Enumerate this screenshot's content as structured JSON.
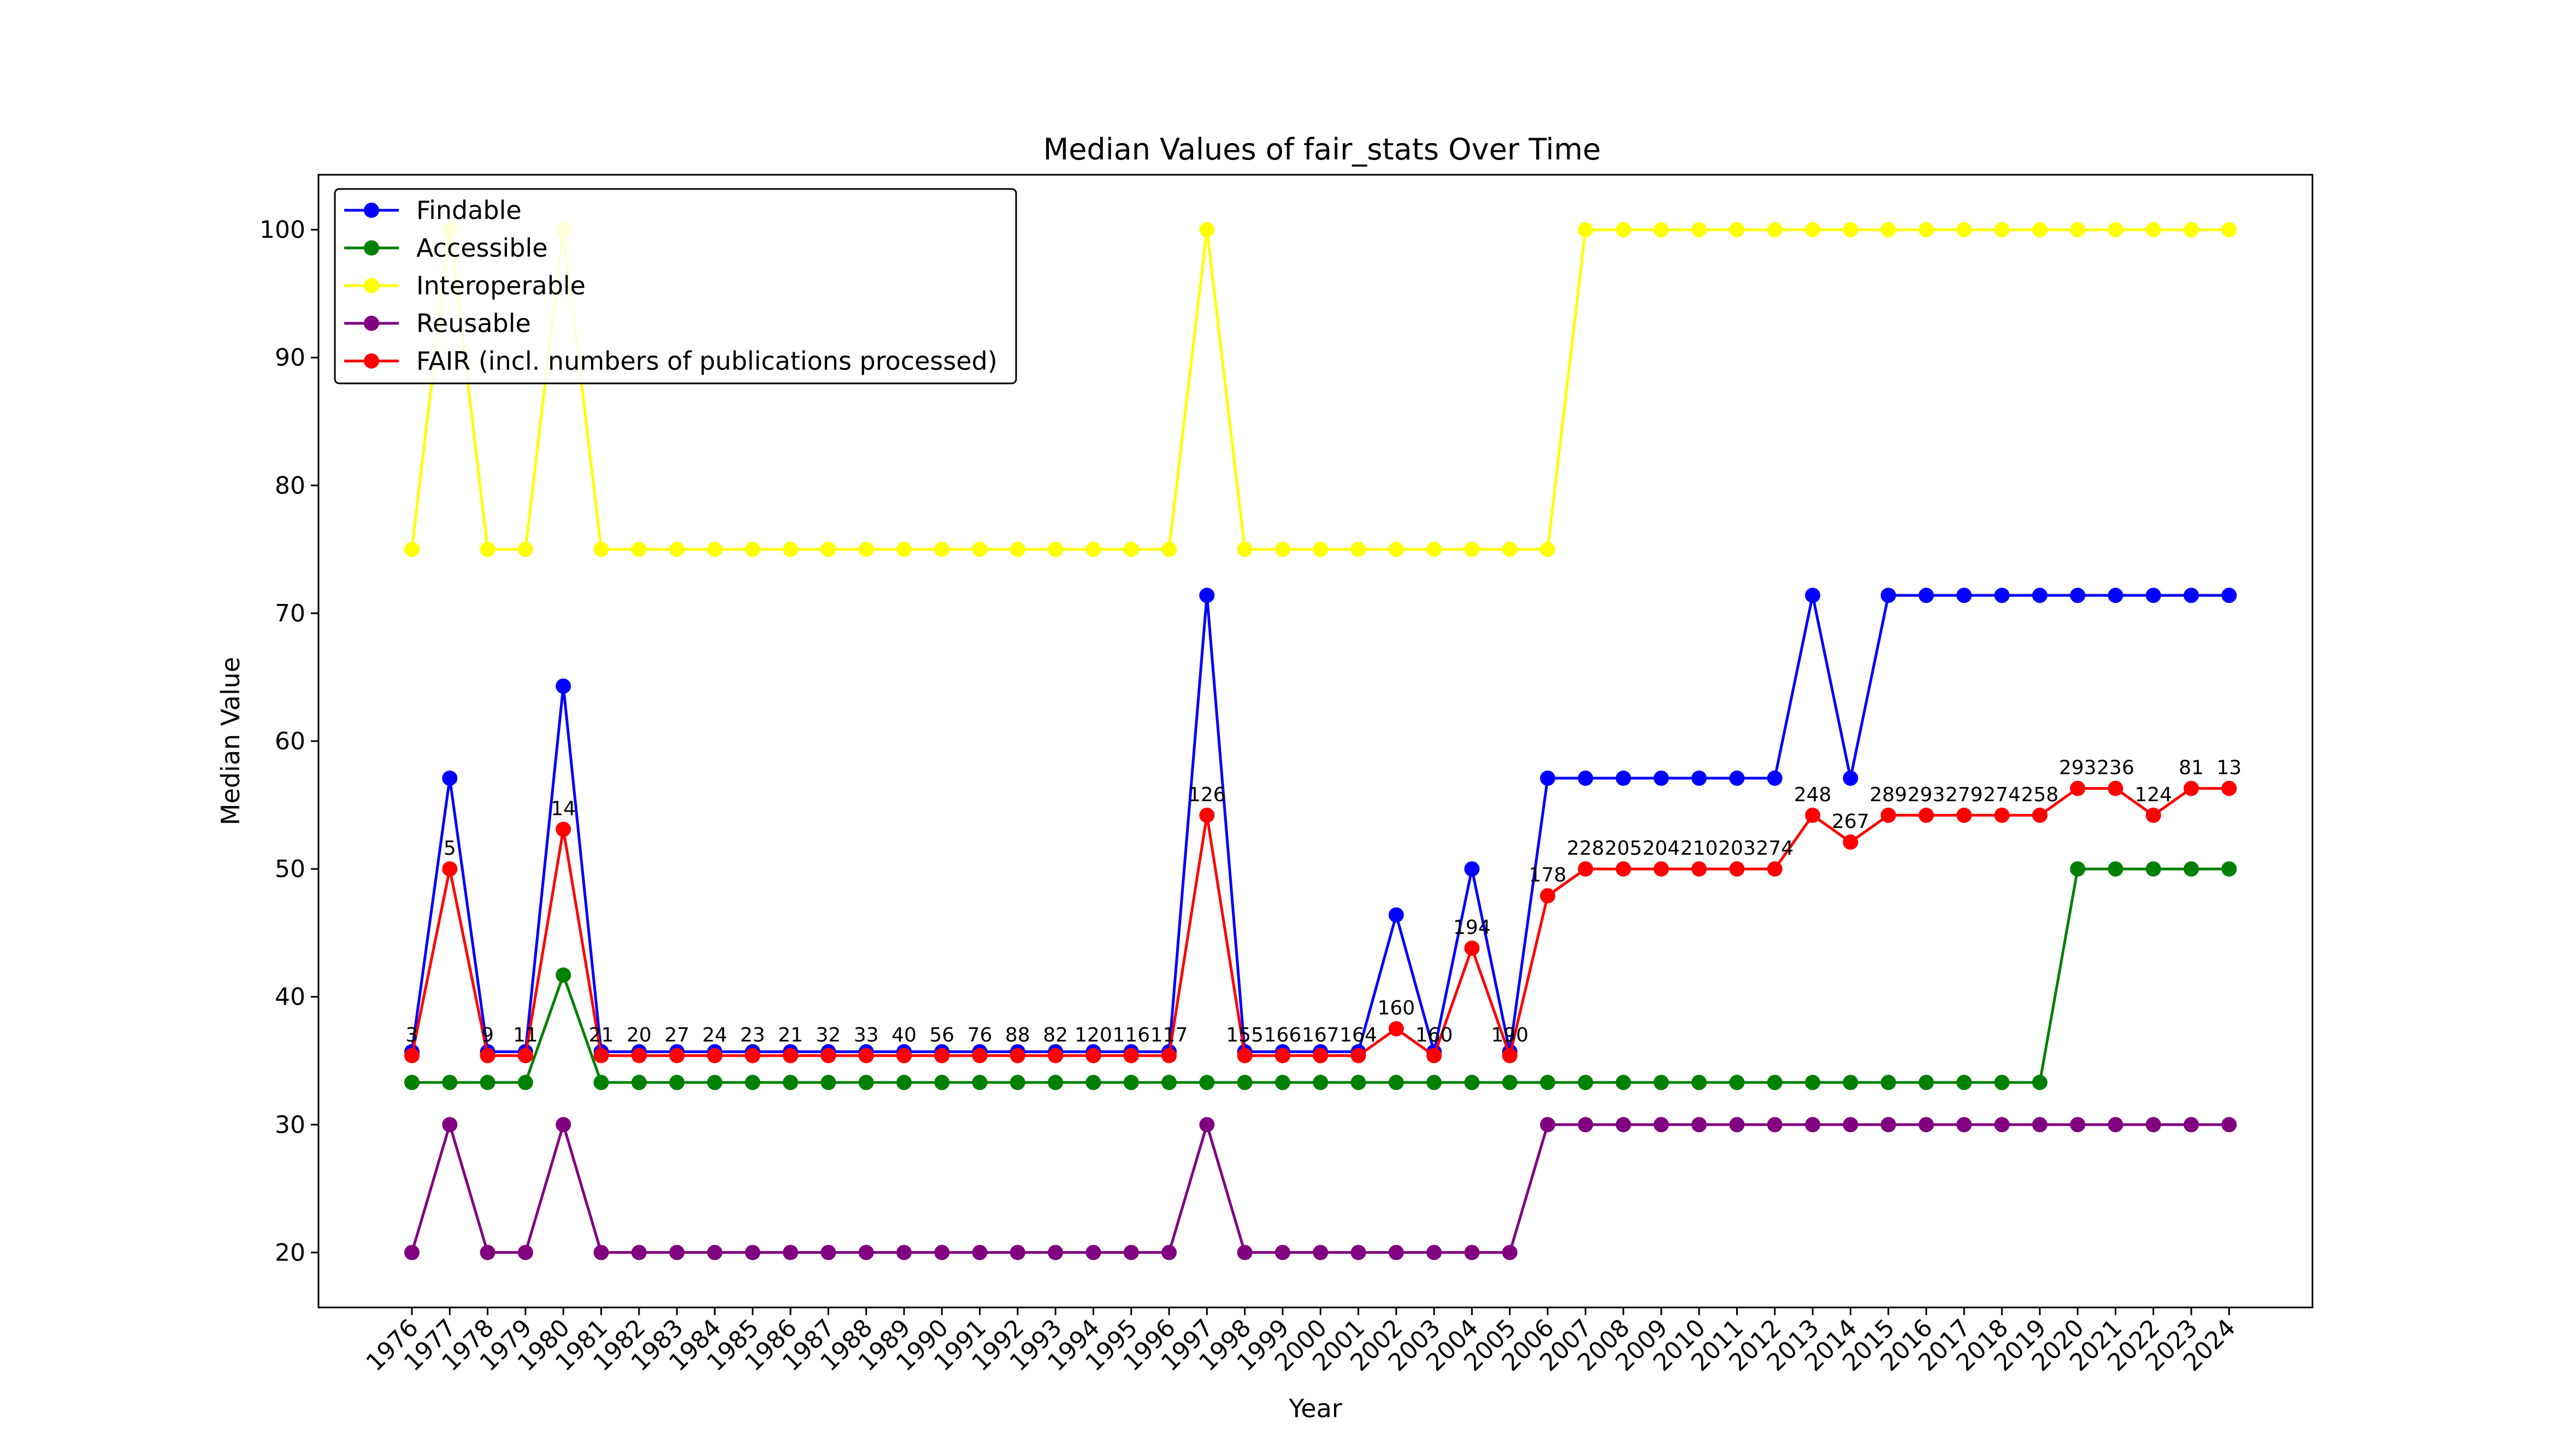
{
  "chart_data": {
    "type": "line",
    "title": "Median Values of fair_stats Over Time",
    "xlabel": "Year",
    "ylabel": "Median Value",
    "ylim": [
      15.7,
      104.3
    ],
    "yticks": [
      "20",
      "30",
      "40",
      "50",
      "60",
      "70",
      "80",
      "90",
      "100"
    ],
    "grid": false,
    "legend_position": "top-left",
    "categories": [
      "1976",
      "1977",
      "1978",
      "1979",
      "1980",
      "1981",
      "1982",
      "1983",
      "1984",
      "1985",
      "1986",
      "1987",
      "1988",
      "1989",
      "1990",
      "1991",
      "1992",
      "1993",
      "1994",
      "1995",
      "1996",
      "1997",
      "1998",
      "1999",
      "2000",
      "2001",
      "2002",
      "2003",
      "2004",
      "2005",
      "2006",
      "2007",
      "2008",
      "2009",
      "2010",
      "2011",
      "2012",
      "2013",
      "2014",
      "2015",
      "2016",
      "2017",
      "2018",
      "2019",
      "2020",
      "2021",
      "2022",
      "2023",
      "2024"
    ],
    "series": [
      {
        "name": "Findable",
        "color": "#0000ff",
        "values": [
          35.7,
          57.1,
          35.7,
          35.7,
          64.3,
          35.7,
          35.7,
          35.7,
          35.7,
          35.7,
          35.7,
          35.7,
          35.7,
          35.7,
          35.7,
          35.7,
          35.7,
          35.7,
          35.7,
          35.7,
          35.7,
          71.4,
          35.7,
          35.7,
          35.7,
          35.7,
          46.4,
          35.7,
          50.0,
          35.7,
          57.1,
          57.1,
          57.1,
          57.1,
          57.1,
          57.1,
          57.1,
          71.4,
          57.1,
          71.4,
          71.4,
          71.4,
          71.4,
          71.4,
          71.4,
          71.4,
          71.4,
          71.4,
          71.4
        ]
      },
      {
        "name": "Accessible",
        "color": "#008000",
        "values": [
          33.3,
          33.3,
          33.3,
          33.3,
          41.7,
          33.3,
          33.3,
          33.3,
          33.3,
          33.3,
          33.3,
          33.3,
          33.3,
          33.3,
          33.3,
          33.3,
          33.3,
          33.3,
          33.3,
          33.3,
          33.3,
          33.3,
          33.3,
          33.3,
          33.3,
          33.3,
          33.3,
          33.3,
          33.3,
          33.3,
          33.3,
          33.3,
          33.3,
          33.3,
          33.3,
          33.3,
          33.3,
          33.3,
          33.3,
          33.3,
          33.3,
          33.3,
          33.3,
          33.3,
          50.0,
          50.0,
          50.0,
          50.0,
          50.0
        ]
      },
      {
        "name": "Interoperable",
        "color": "#ffff00",
        "values": [
          75,
          100,
          75,
          75,
          100,
          75,
          75,
          75,
          75,
          75,
          75,
          75,
          75,
          75,
          75,
          75,
          75,
          75,
          75,
          75,
          75,
          100,
          75,
          75,
          75,
          75,
          75,
          75,
          75,
          75,
          75,
          100,
          100,
          100,
          100,
          100,
          100,
          100,
          100,
          100,
          100,
          100,
          100,
          100,
          100,
          100,
          100,
          100,
          100
        ]
      },
      {
        "name": "Reusable",
        "color": "#800080",
        "values": [
          20,
          30,
          20,
          20,
          30,
          20,
          20,
          20,
          20,
          20,
          20,
          20,
          20,
          20,
          20,
          20,
          20,
          20,
          20,
          20,
          20,
          30,
          20,
          20,
          20,
          20,
          20,
          20,
          20,
          20,
          30,
          30,
          30,
          30,
          30,
          30,
          30,
          30,
          30,
          30,
          30,
          30,
          30,
          30,
          30,
          30,
          30,
          30,
          30
        ]
      },
      {
        "name": "FAIR (incl. numbers of publications processed)",
        "color": "#ff0000",
        "values": [
          35.4,
          50.0,
          35.4,
          35.4,
          53.1,
          35.4,
          35.4,
          35.4,
          35.4,
          35.4,
          35.4,
          35.4,
          35.4,
          35.4,
          35.4,
          35.4,
          35.4,
          35.4,
          35.4,
          35.4,
          35.4,
          54.2,
          35.4,
          35.4,
          35.4,
          35.4,
          37.5,
          35.4,
          43.8,
          35.4,
          47.9,
          50.0,
          50.0,
          50.0,
          50.0,
          50.0,
          50.0,
          54.2,
          52.1,
          54.2,
          54.2,
          54.2,
          54.2,
          54.2,
          56.3,
          56.3,
          54.2,
          56.3,
          56.3
        ],
        "point_labels": [
          "3",
          "5",
          "9",
          "11",
          "14",
          "21",
          "20",
          "27",
          "24",
          "23",
          "21",
          "32",
          "33",
          "40",
          "56",
          "76",
          "88",
          "82",
          "120",
          "116",
          "117",
          "126",
          "155",
          "166",
          "167",
          "164",
          "160",
          "160",
          "194",
          "190",
          "178",
          "228",
          "205",
          "204",
          "210",
          "203",
          "274",
          "248",
          "267",
          "289",
          "293",
          "279",
          "274",
          "258",
          "293",
          "236",
          "124",
          "81",
          "13"
        ]
      }
    ]
  }
}
